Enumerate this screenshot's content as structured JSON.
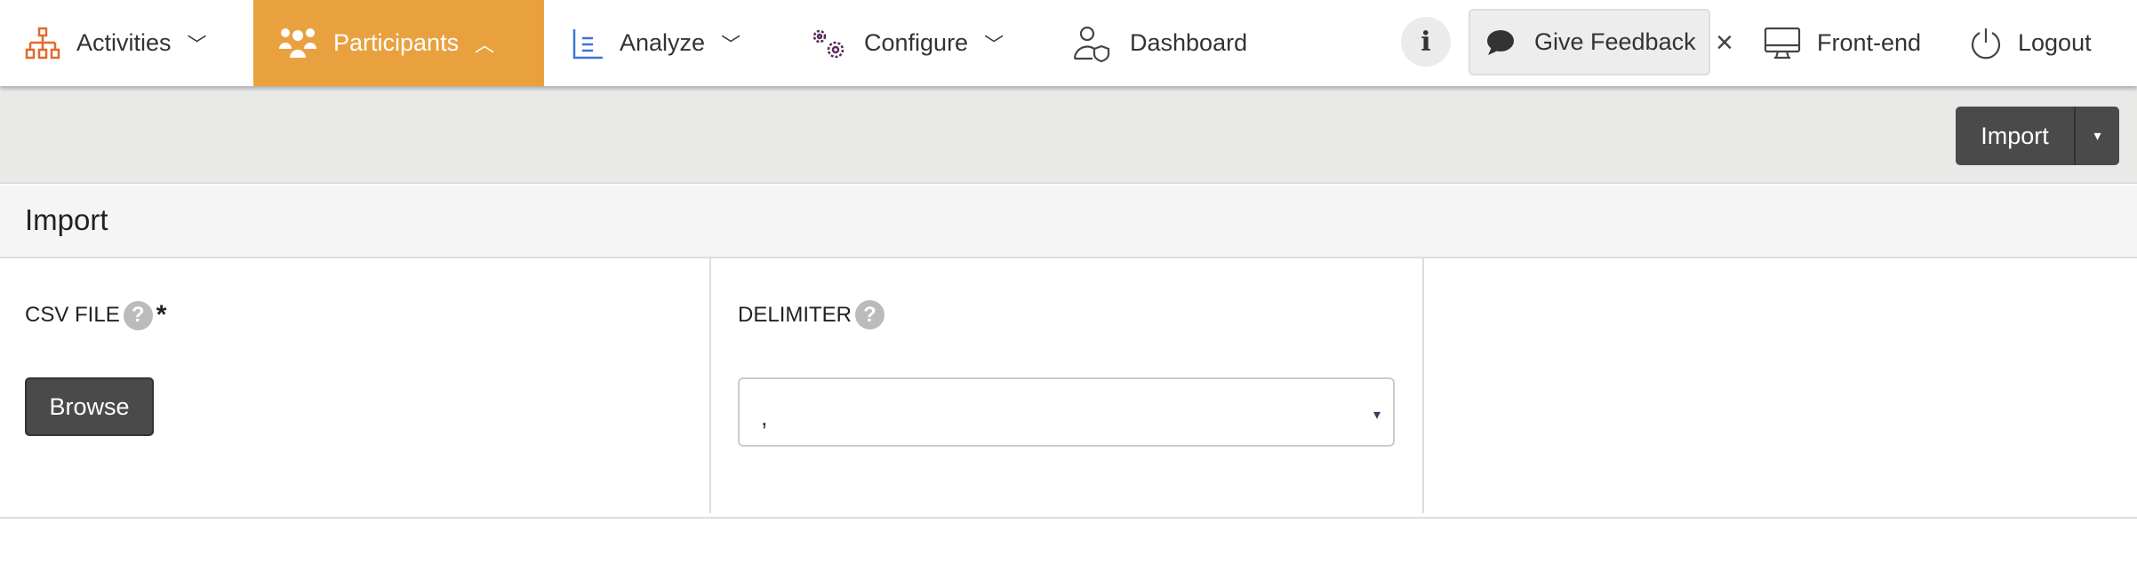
{
  "nav": {
    "items": [
      {
        "label": "Activities",
        "icon": "sitemap-icon",
        "chevron": "down"
      },
      {
        "label": "Participants",
        "icon": "users-icon",
        "chevron": "up",
        "active": true
      },
      {
        "label": "Analyze",
        "icon": "chart-icon",
        "chevron": "down"
      },
      {
        "label": "Configure",
        "icon": "gears-icon",
        "chevron": "down"
      },
      {
        "label": "Dashboard",
        "icon": "user-shield-icon"
      }
    ],
    "info": "i",
    "feedback": "Give Feedback",
    "close": "×",
    "frontend": "Front-end",
    "logout": "Logout"
  },
  "toolbar": {
    "import_label": "Import",
    "caret": "▾"
  },
  "section": {
    "title": "Import"
  },
  "form": {
    "csv_label": "CSV FILE",
    "help": "?",
    "required": "*",
    "browse": "Browse",
    "delimiter_label": "DELIMITER",
    "delimiter_value": ",",
    "caret": "▾"
  },
  "colors": {
    "accent": "#e9a13f",
    "button": "#4a4a4a",
    "toolbar": "#e9eae8"
  }
}
